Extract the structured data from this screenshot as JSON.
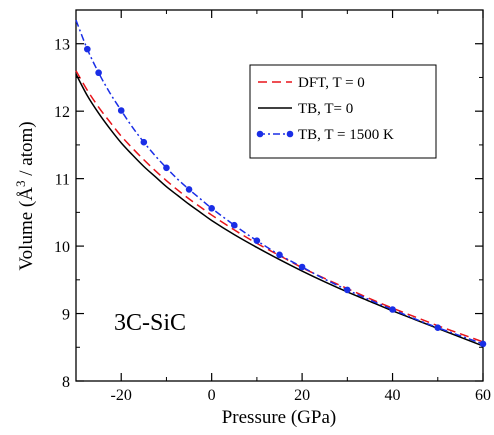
{
  "chart_data": {
    "type": "line",
    "xlabel": "Pressure  (GPa)",
    "ylabel_main": "Volume  (",
    "ylabel_unit": "Å",
    "ylabel_exp": "3",
    "ylabel_rest": " / atom)",
    "xlim": [
      -30,
      60
    ],
    "ylim": [
      8,
      13.5
    ],
    "x_ticks": [
      -20,
      0,
      20,
      40,
      60
    ],
    "x_tick_labels": [
      "-20",
      "0",
      "20",
      "40",
      "60"
    ],
    "y_ticks": [
      8,
      9,
      10,
      11,
      12,
      13
    ],
    "y_tick_labels": [
      "8",
      "9",
      "10",
      "11",
      "12",
      "13"
    ],
    "grid": false,
    "legend_position": "top-right",
    "annotation": "3C-SiC",
    "series": [
      {
        "name": "DFT, T = 0",
        "color": "#e8141a",
        "style": "dashed",
        "markers": false,
        "x": [
          -30,
          -27.5,
          -25,
          -22.5,
          -20,
          -17.5,
          -15,
          -12.5,
          -10,
          -7.5,
          -5,
          -2.5,
          0,
          5,
          10,
          15,
          20,
          25,
          30,
          35,
          40,
          45,
          50,
          55,
          60
        ],
        "y": [
          12.6,
          12.31,
          12.06,
          11.84,
          11.63,
          11.45,
          11.28,
          11.12,
          10.97,
          10.83,
          10.7,
          10.58,
          10.46,
          10.24,
          10.04,
          9.86,
          9.68,
          9.52,
          9.37,
          9.22,
          9.08,
          8.95,
          8.82,
          8.7,
          8.58
        ]
      },
      {
        "name": "TB,  T= 0",
        "color": "#000000",
        "style": "solid",
        "markers": false,
        "x": [
          -30,
          -27.5,
          -25,
          -22.5,
          -20,
          -17.5,
          -15,
          -12.5,
          -10,
          -7.5,
          -5,
          -2.5,
          0,
          5,
          10,
          15,
          20,
          25,
          30,
          35,
          40,
          45,
          50,
          55,
          60
        ],
        "y": [
          12.55,
          12.23,
          11.97,
          11.74,
          11.53,
          11.35,
          11.18,
          11.03,
          10.88,
          10.75,
          10.62,
          10.5,
          10.38,
          10.17,
          9.98,
          9.8,
          9.63,
          9.47,
          9.32,
          9.18,
          9.04,
          8.91,
          8.78,
          8.65,
          8.52
        ]
      },
      {
        "name": "TB,  T = 1500 K",
        "color": "#1a2ee6",
        "style": "dashdot",
        "markers": true,
        "curve_x": [
          -30,
          -27.5,
          -25,
          -22.5,
          -20,
          -17.5,
          -15,
          -12.5,
          -10,
          -7.5,
          -5,
          -2.5,
          0,
          5,
          10,
          15,
          20,
          25,
          30,
          35,
          40,
          45,
          50,
          55,
          60
        ],
        "curve_y": [
          13.35,
          12.92,
          12.57,
          12.27,
          12.01,
          11.76,
          11.54,
          11.34,
          11.16,
          10.99,
          10.84,
          10.7,
          10.56,
          10.31,
          10.08,
          9.87,
          9.69,
          9.51,
          9.35,
          9.2,
          9.06,
          8.92,
          8.79,
          8.67,
          8.55
        ],
        "x": [
          -27.5,
          -25,
          -20,
          -15,
          -10,
          -5,
          0,
          5,
          10,
          15,
          20,
          30,
          40,
          50,
          60
        ],
        "y": [
          12.92,
          12.57,
          12.01,
          11.54,
          11.16,
          10.84,
          10.56,
          10.31,
          10.08,
          9.87,
          9.69,
          9.35,
          9.06,
          8.79,
          8.55
        ]
      }
    ]
  }
}
